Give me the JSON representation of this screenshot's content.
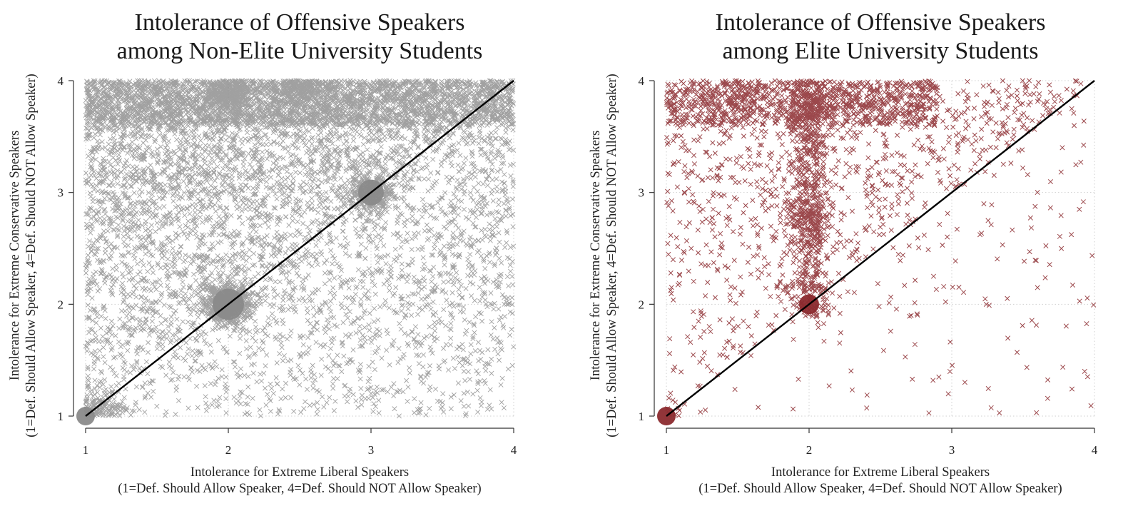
{
  "chart_data": [
    {
      "type": "scatter",
      "title": [
        "Intolerance of Offensive Speakers",
        "among Non-Elite University Students"
      ],
      "xlabel": [
        "Intolerance for Extreme Liberal Speakers",
        "(1=Def. Should Allow Speaker, 4=Def. Should NOT Allow Speaker)"
      ],
      "ylabel": [
        "Intolerance for Extreme Conservative Speakers",
        "(1=Def. Should Allow Speaker, 4=Def. Should NOT Allow Speaker)"
      ],
      "xlim": [
        1,
        4
      ],
      "ylim": [
        1,
        4
      ],
      "xticks": [
        "1",
        "2",
        "3",
        "4"
      ],
      "yticks": [
        "1",
        "2",
        "3",
        "4"
      ],
      "grid": true,
      "marker": "x",
      "color": "#8a8a8a",
      "density": "very high",
      "reference_line": {
        "from": [
          1,
          1
        ],
        "to": [
          4,
          4
        ],
        "color": "#000000"
      },
      "highlight_points": [
        [
          1,
          1
        ],
        [
          2,
          2
        ],
        [
          3,
          3
        ]
      ],
      "point_clusters": [
        {
          "x": 1.1,
          "y": 1.05,
          "n": 120
        },
        {
          "x": 2.0,
          "y": 2.0,
          "n": 300
        },
        {
          "x": 3.0,
          "y": 3.0,
          "n": 150
        },
        {
          "x": 2.0,
          "y": 3.9,
          "n": 200
        },
        {
          "x": 2.5,
          "y": 3.95,
          "n": 150
        }
      ]
    },
    {
      "type": "scatter",
      "title": [
        "Intolerance of Offensive Speakers",
        "among Elite University Students"
      ],
      "xlabel": [
        "Intolerance for Extreme Liberal Speakers",
        "(1=Def. Should Allow Speaker, 4=Def. Should NOT Allow Speaker)"
      ],
      "ylabel": [
        "Intolerance for Extreme Conservative Speakers",
        "(1=Def. Should Allow Speaker, 4=Def. Should NOT Allow Speaker)"
      ],
      "xlim": [
        1,
        4
      ],
      "ylim": [
        1,
        4
      ],
      "xticks": [
        "1",
        "2",
        "3",
        "4"
      ],
      "yticks": [
        "1",
        "2",
        "3",
        "4"
      ],
      "grid": true,
      "marker": "x",
      "color": "#8b2a2e",
      "density": "moderate",
      "reference_line": {
        "from": [
          1,
          1
        ],
        "to": [
          4,
          4
        ],
        "color": "#000000"
      },
      "highlight_points": [
        [
          1,
          1
        ],
        [
          2,
          2
        ]
      ],
      "point_clusters": [
        {
          "x": 1.02,
          "y": 1.02,
          "n": 40
        },
        {
          "x": 2.0,
          "y": 2.0,
          "n": 70
        },
        {
          "x": 2.0,
          "y": 3.75,
          "n": 120
        },
        {
          "x": 1.5,
          "y": 3.9,
          "n": 80
        },
        {
          "x": 2.0,
          "y": 2.8,
          "n": 100
        }
      ]
    }
  ]
}
